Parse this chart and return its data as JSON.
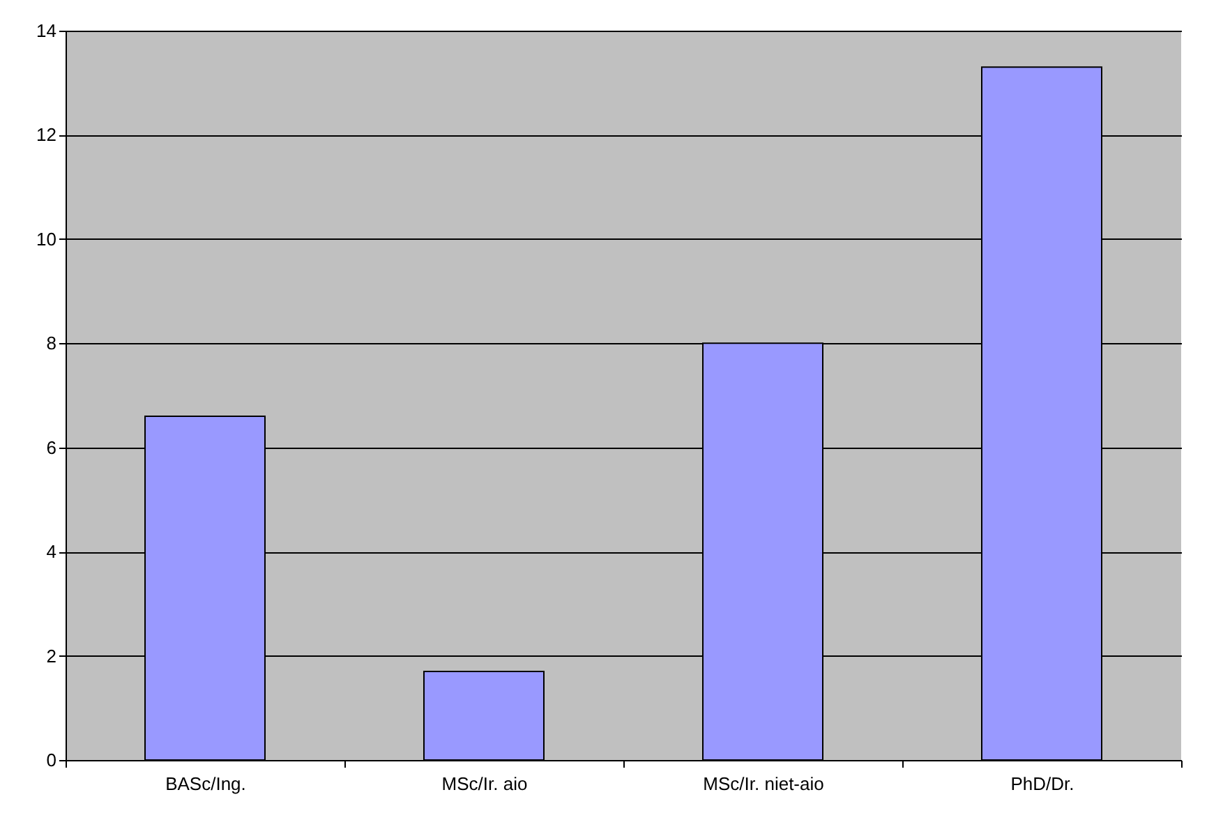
{
  "chart_data": {
    "type": "bar",
    "categories": [
      "BASc/Ing.",
      "MSc/Ir. aio",
      "MSc/Ir. niet-aio",
      "PhD/Dr."
    ],
    "values": [
      6.6,
      1.7,
      8.0,
      13.3
    ],
    "color": "#9999ff",
    "ylim": [
      0,
      14
    ],
    "yticks": [
      0,
      2,
      4,
      6,
      8,
      10,
      12,
      14
    ],
    "grid": "y"
  }
}
